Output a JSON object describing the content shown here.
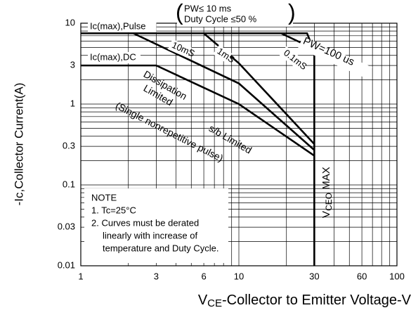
{
  "chart_data": {
    "type": "line",
    "log_x": true,
    "log_y": true,
    "grid": true,
    "y_label": "-Ic,Collector Current(A)",
    "x_label": {
      "main": "V",
      "sub": "CE",
      "rest": "-Collector to Emitter Voltage-V"
    },
    "xlim": [
      1,
      100
    ],
    "ylim": [
      0.01,
      10
    ],
    "xticks": [
      1,
      3,
      6,
      10,
      30,
      60,
      100
    ],
    "yticks": [
      0.01,
      0.03,
      0.1,
      0.3,
      1,
      3,
      10
    ],
    "xgrid": [
      1,
      2,
      3,
      4,
      5,
      6,
      7,
      8,
      9,
      10,
      20,
      30,
      40,
      50,
      60,
      70,
      80,
      90,
      100
    ],
    "ygrid": [
      0.01,
      0.02,
      0.03,
      0.04,
      0.05,
      0.06,
      0.07,
      0.08,
      0.09,
      0.1,
      0.2,
      0.3,
      0.4,
      0.5,
      0.6,
      0.7,
      0.8,
      0.9,
      1,
      2,
      3,
      4,
      5,
      6,
      7,
      8,
      9,
      10
    ],
    "series": [
      {
        "name": "Ic(max),Pulse",
        "color": "#000000",
        "x": [
          1,
          27,
          30
        ],
        "values": [
          7.5,
          7.5,
          4.5
        ]
      },
      {
        "name": "Ic(max),DC",
        "color": "#000000",
        "x": [
          1,
          3,
          10,
          30
        ],
        "values": [
          3,
          3,
          1,
          0.23
        ]
      },
      {
        "name": "10mS",
        "color": "#000000",
        "x": [
          2.15,
          10,
          30
        ],
        "values": [
          7.5,
          1.8,
          0.27
        ]
      },
      {
        "name": "1mS",
        "color": "#000000",
        "x": [
          6,
          10,
          30
        ],
        "values": [
          7.5,
          3.2,
          0.32
        ]
      },
      {
        "name": "0.1mS",
        "color": "#000000",
        "x": [
          18.5,
          30
        ],
        "values": [
          7.5,
          4.8
        ]
      },
      {
        "color": "#000000",
        "x": [
          30,
          30
        ],
        "values": [
          4.5,
          0.01
        ]
      }
    ],
    "vceo_label": {
      "main": "V",
      "sub": "CEO",
      "rest": " MAX"
    },
    "pw_note": [
      "PW≤ 10 ms",
      "Duty Cycle ≤50 %"
    ],
    "pw_line_label": "PW=100 us",
    "region_labels": [
      "Dissipation",
      "Limited",
      "(Single nonrepetitive pulse)",
      "s/b Limited"
    ],
    "note": [
      "NOTE",
      "1. Tc=25°C",
      "2. Curves must be derated",
      "linearly with increase of",
      "temperature and Duty Cycle."
    ]
  }
}
